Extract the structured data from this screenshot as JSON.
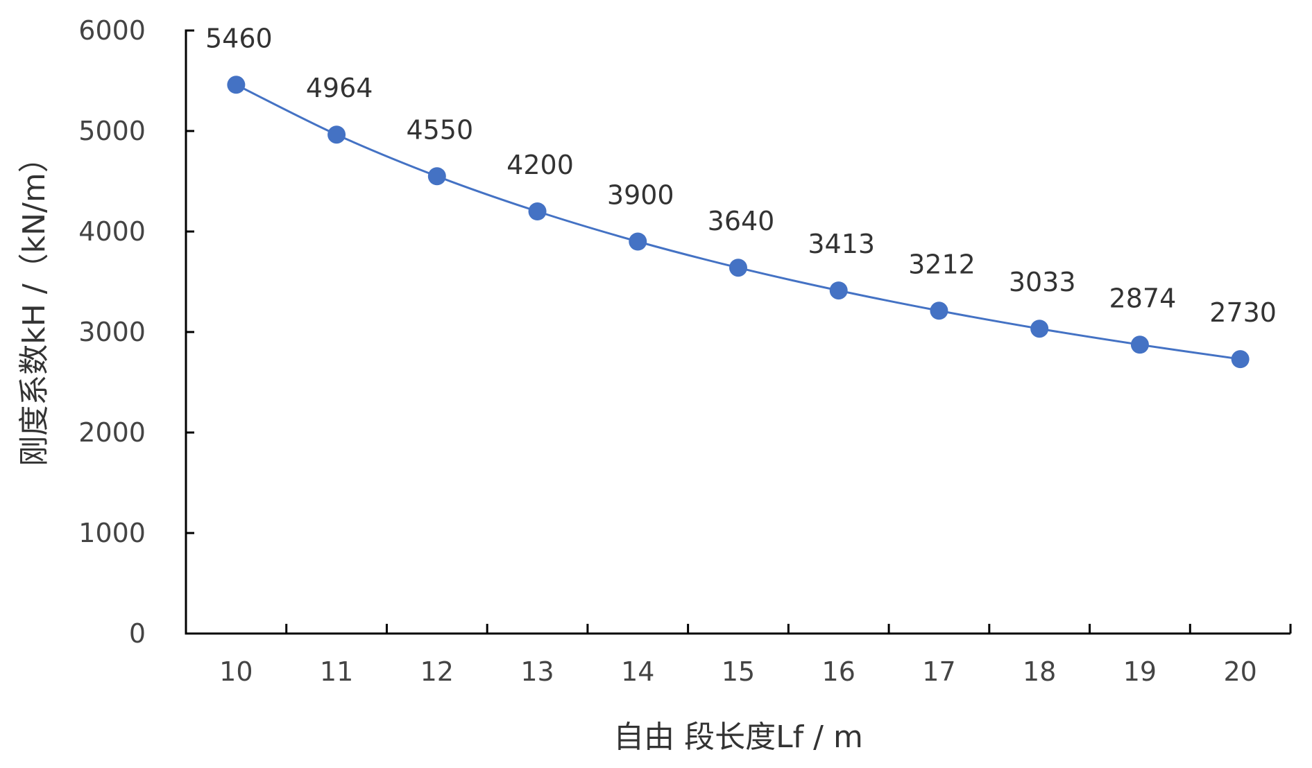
{
  "chart_data": {
    "type": "line",
    "title": "",
    "xlabel": "自由 段长度Lf / m",
    "ylabel": "刚度系数kH /（kN/m）",
    "x": [
      10,
      11,
      12,
      13,
      14,
      15,
      16,
      17,
      18,
      19,
      20
    ],
    "series": [
      {
        "values": [
          5460,
          4964,
          4550,
          4200,
          3900,
          3640,
          3413,
          3212,
          3033,
          2874,
          2730
        ]
      }
    ],
    "data_labels": [
      "5460",
      "4964",
      "4550",
      "4200",
      "3900",
      "3640",
      "3413",
      "3212",
      "3033",
      "2874",
      "2730"
    ],
    "x_tick_labels": [
      "10",
      "11",
      "12",
      "13",
      "14",
      "15",
      "16",
      "17",
      "18",
      "19",
      "20"
    ],
    "y_tick_labels": [
      "0",
      "1000",
      "2000",
      "3000",
      "4000",
      "5000",
      "6000"
    ],
    "y_ticks": [
      0,
      1000,
      2000,
      3000,
      4000,
      5000,
      6000
    ],
    "ylim": [
      0,
      6000
    ],
    "xlim": [
      9.5,
      20.5
    ],
    "grid": false,
    "legend": "none",
    "colors": {
      "series": "#4472c4",
      "axis": "#000000"
    }
  }
}
